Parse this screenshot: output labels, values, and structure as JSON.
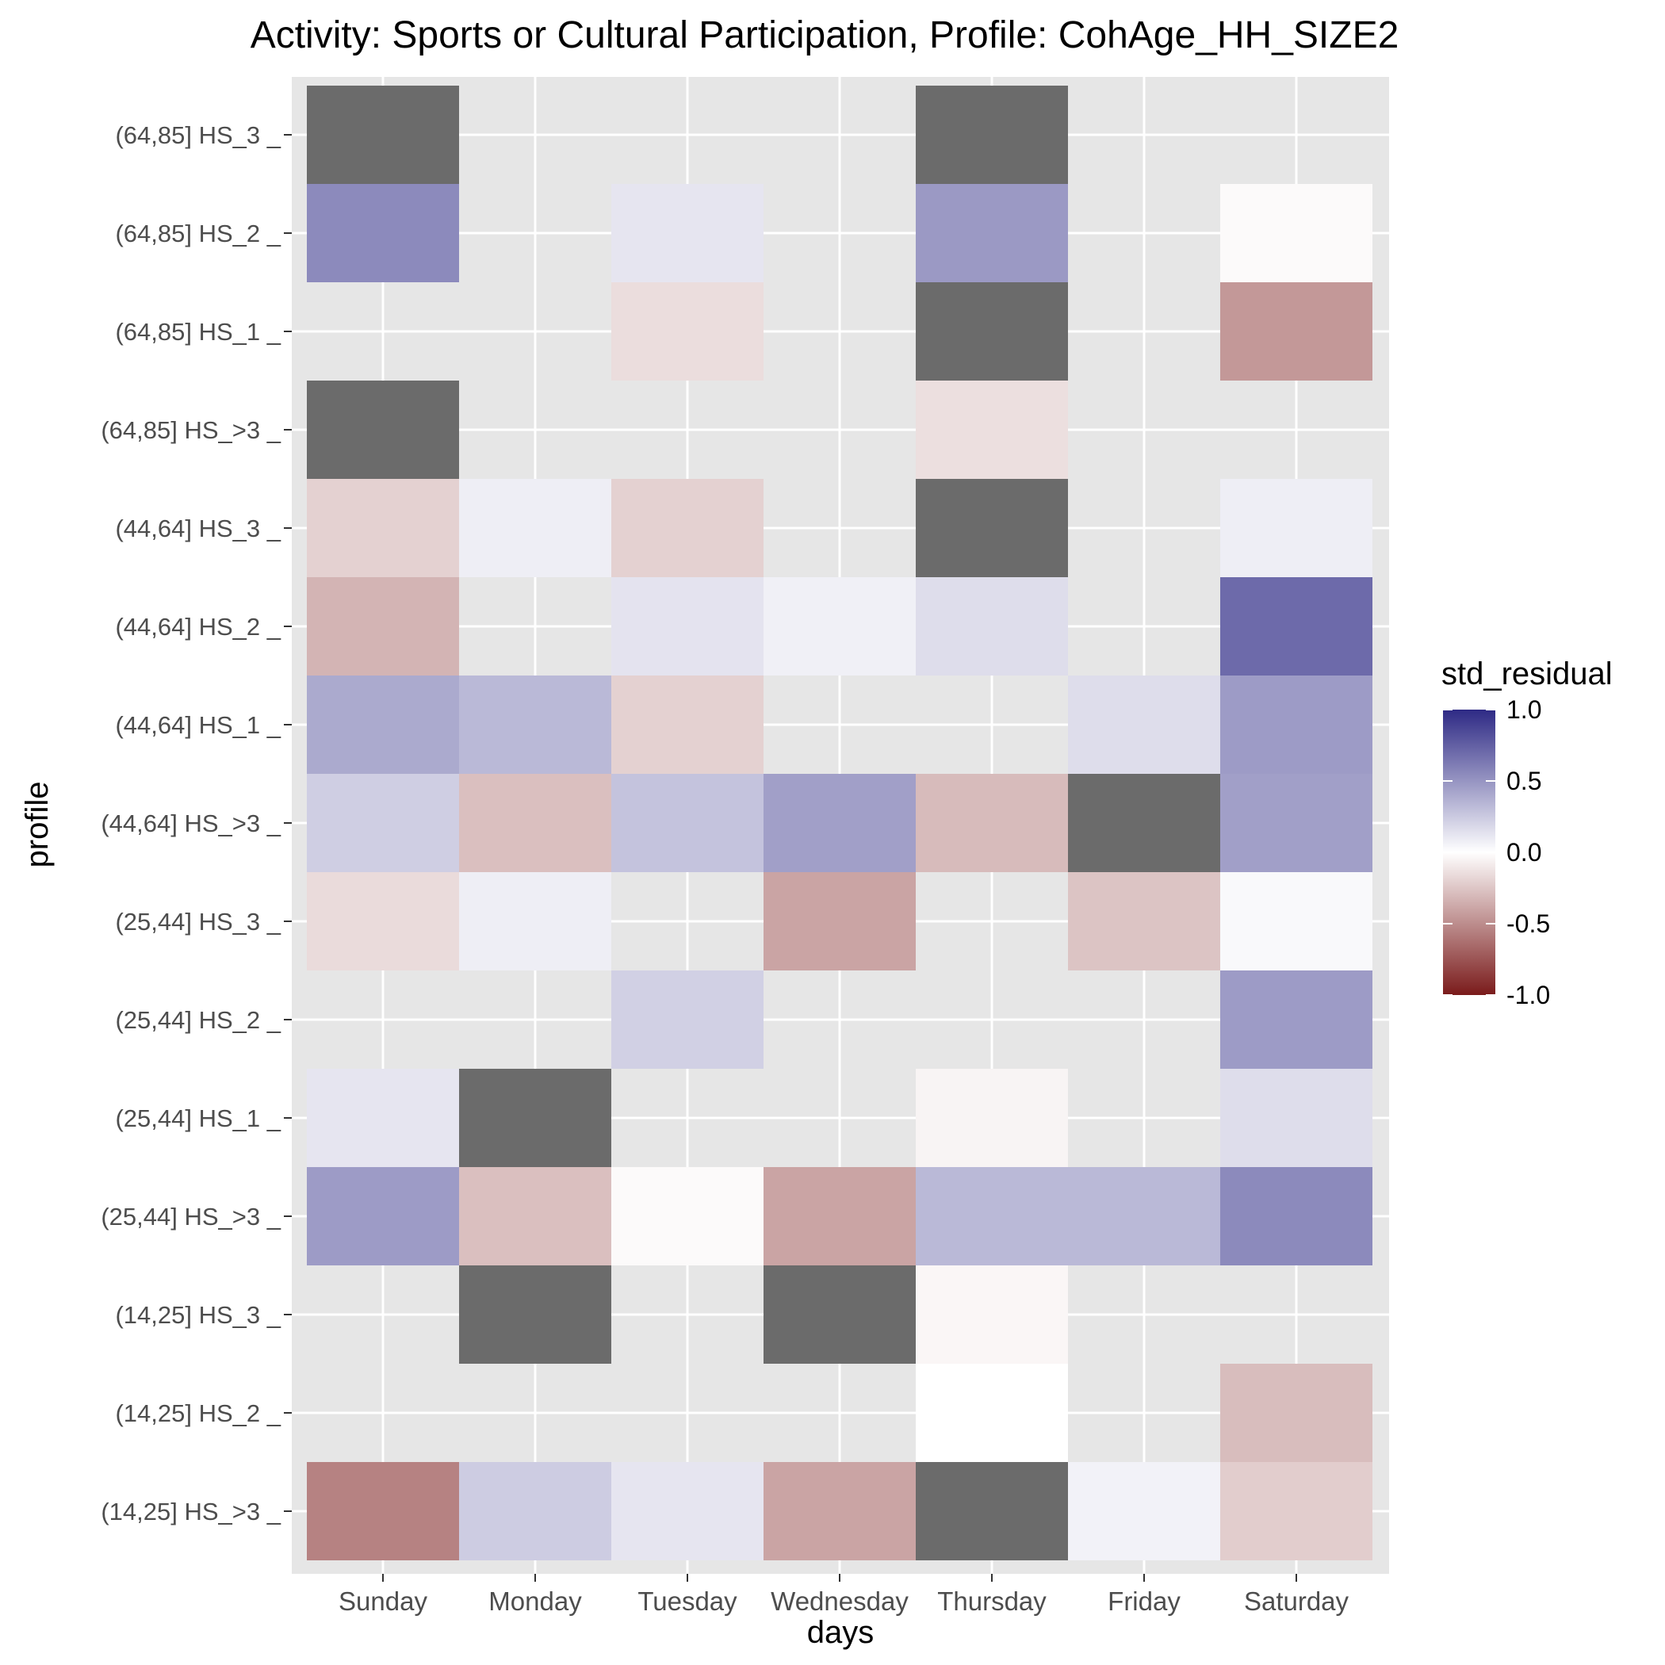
{
  "chart_data": {
    "type": "heatmap",
    "title": "Activity: Sports or Cultural Participation, Profile: CohAge_HH_SIZE2",
    "xlabel": "days",
    "ylabel": "profile",
    "x_categories": [
      "Sunday",
      "Monday",
      "Tuesday",
      "Wednesday",
      "Thursday",
      "Friday",
      "Saturday"
    ],
    "y_categories": [
      "(64,85] HS_3 _",
      "(64,85] HS_2 _",
      "(64,85] HS_1 _",
      "(64,85] HS_>3 _",
      "(44,64] HS_3 _",
      "(44,64] HS_2 _",
      "(44,64] HS_1 _",
      "(44,64] HS_>3 _",
      "(25,44] HS_3 _",
      "(25,44] HS_2 _",
      "(25,44] HS_1 _",
      "(25,44] HS_>3 _",
      "(14,25] HS_3 _",
      "(14,25] HS_2 _",
      "(14,25] HS_>3 _"
    ],
    "values": [
      [
        "NA",
        null,
        null,
        null,
        "NA",
        null,
        null
      ],
      [
        0.55,
        null,
        0.12,
        null,
        0.48,
        null,
        -0.02
      ],
      [
        null,
        null,
        -0.15,
        null,
        "NA",
        null,
        -0.45
      ],
      [
        "NA",
        null,
        null,
        null,
        -0.14,
        null,
        null
      ],
      [
        -0.2,
        0.08,
        -0.2,
        null,
        "NA",
        null,
        0.08
      ],
      [
        -0.33,
        null,
        0.13,
        0.07,
        0.16,
        null,
        0.7
      ],
      [
        0.4,
        0.33,
        -0.2,
        null,
        null,
        0.16,
        0.47
      ],
      [
        0.23,
        -0.28,
        0.28,
        0.45,
        -0.3,
        "NA",
        0.45
      ],
      [
        -0.16,
        0.08,
        null,
        -0.4,
        null,
        -0.26,
        0.03
      ],
      [
        null,
        null,
        0.22,
        null,
        null,
        null,
        0.47
      ],
      [
        0.12,
        "NA",
        null,
        null,
        -0.05,
        null,
        0.16
      ],
      [
        0.47,
        -0.28,
        -0.02,
        -0.4,
        0.33,
        0.33,
        0.55
      ],
      [
        null,
        "NA",
        null,
        "NA",
        -0.04,
        null,
        null
      ],
      [
        null,
        null,
        null,
        null,
        0.0,
        null,
        -0.29
      ],
      [
        -0.55,
        0.24,
        0.12,
        -0.4,
        "NA",
        0.06,
        -0.22
      ]
    ],
    "value_range": [
      -1,
      1
    ],
    "na_color": "#6b6b6b",
    "empty_color": "#e6e6e6",
    "low_color": "#7a1b1b",
    "mid_color": "#ffffff",
    "high_color": "#2e2a85",
    "legend": {
      "title": "std_residual",
      "labels": [
        "1.0",
        "0.5",
        "0.0",
        "-0.5",
        "-1.0"
      ],
      "placement": "right"
    },
    "grid": true
  }
}
